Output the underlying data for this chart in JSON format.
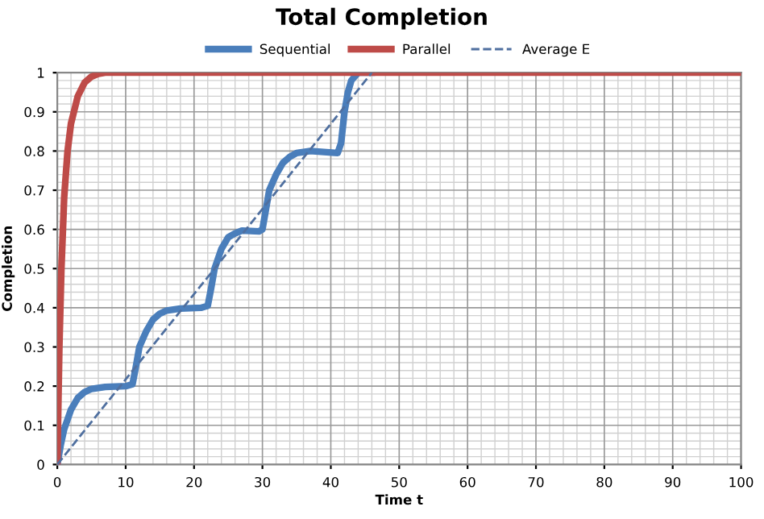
{
  "chart_data": {
    "type": "line",
    "title": "Total Completion",
    "xlabel": "Time t",
    "ylabel": "Completion",
    "xlim": [
      0,
      100
    ],
    "xticks": [
      0,
      10,
      20,
      30,
      40,
      50,
      60,
      70,
      80,
      90,
      100
    ],
    "ylim": [
      0,
      1
    ],
    "yticks": [
      0,
      0.1,
      0.2,
      0.3,
      0.4,
      0.5,
      0.6,
      0.7,
      0.8,
      0.9,
      1
    ],
    "grid": true,
    "legend": "top",
    "marker": "none",
    "series": [
      {
        "name": "Sequential",
        "color": "#4a7ebb",
        "line_style": "solid",
        "x": [
          0,
          0.5,
          1,
          2,
          3,
          4,
          5,
          7,
          10,
          11,
          11.5,
          12,
          13,
          14,
          15,
          16,
          18,
          21,
          22,
          22.5,
          23,
          24,
          25,
          26,
          27,
          29.5,
          30,
          30.5,
          31,
          32,
          33,
          34,
          35,
          37,
          41,
          41.5,
          42,
          42.5,
          43,
          44,
          46
        ],
        "values": [
          0,
          0.05,
          0.09,
          0.14,
          0.17,
          0.185,
          0.193,
          0.198,
          0.2,
          0.205,
          0.25,
          0.3,
          0.34,
          0.37,
          0.385,
          0.393,
          0.398,
          0.4,
          0.405,
          0.45,
          0.5,
          0.55,
          0.58,
          0.59,
          0.597,
          0.595,
          0.6,
          0.65,
          0.7,
          0.74,
          0.77,
          0.785,
          0.795,
          0.8,
          0.795,
          0.82,
          0.9,
          0.95,
          0.98,
          1,
          1
        ]
      },
      {
        "name": "Parallel",
        "color": "#be4b48",
        "line_style": "solid",
        "x": [
          0,
          0.3,
          0.6,
          1,
          1.5,
          2,
          3,
          4,
          5,
          6,
          7,
          100
        ],
        "values": [
          0,
          0.3,
          0.5,
          0.68,
          0.8,
          0.87,
          0.94,
          0.975,
          0.99,
          0.997,
          1,
          1
        ]
      },
      {
        "name": "Average E",
        "color": "#4f6f9f",
        "line_style": "dashed",
        "x": [
          0,
          46
        ],
        "values": [
          0,
          1
        ]
      }
    ]
  }
}
